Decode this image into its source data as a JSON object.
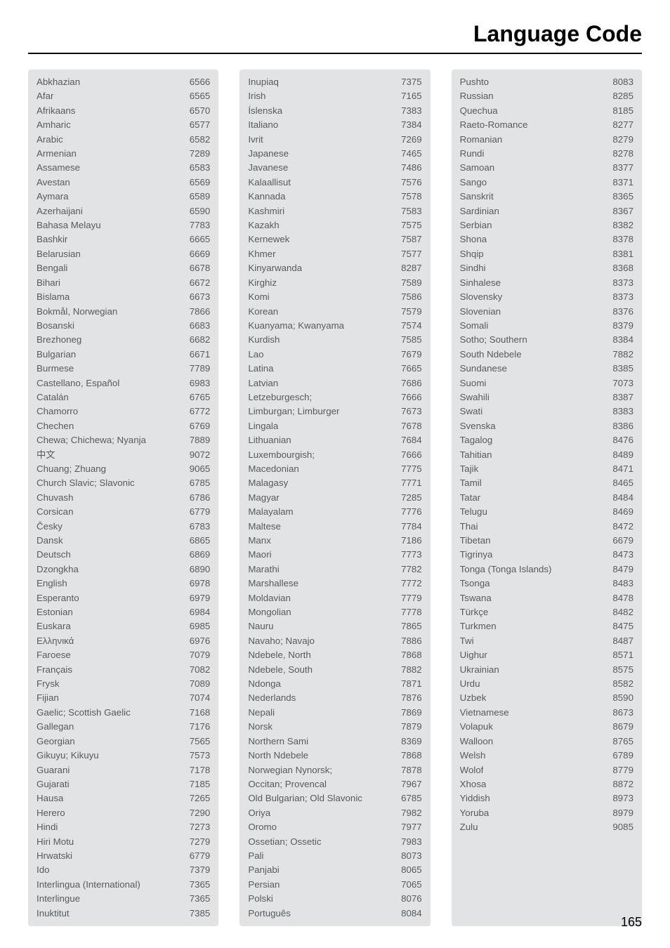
{
  "title": "Language Code",
  "page_number": "165",
  "columns": [
    [
      {
        "lang": "Abkhazian",
        "code": "6566"
      },
      {
        "lang": "Afar",
        "code": "6565"
      },
      {
        "lang": "Afrikaans",
        "code": "6570"
      },
      {
        "lang": "Amharic",
        "code": "6577"
      },
      {
        "lang": "Arabic",
        "code": "6582"
      },
      {
        "lang": "Armenian",
        "code": "7289"
      },
      {
        "lang": "Assamese",
        "code": "6583"
      },
      {
        "lang": "Avestan",
        "code": "6569"
      },
      {
        "lang": "Aymara",
        "code": "6589"
      },
      {
        "lang": "Azerhaijani",
        "code": "6590"
      },
      {
        "lang": "Bahasa Melayu",
        "code": "7783"
      },
      {
        "lang": "Bashkir",
        "code": "6665"
      },
      {
        "lang": "Belarusian",
        "code": "6669"
      },
      {
        "lang": "Bengali",
        "code": "6678"
      },
      {
        "lang": "Bihari",
        "code": "6672"
      },
      {
        "lang": "Bislama",
        "code": "6673"
      },
      {
        "lang": "Bokmål, Norwegian",
        "code": "7866"
      },
      {
        "lang": "Bosanski",
        "code": "6683"
      },
      {
        "lang": "Brezhoneg",
        "code": "6682"
      },
      {
        "lang": "Bulgarian",
        "code": "6671"
      },
      {
        "lang": "Burmese",
        "code": "7789"
      },
      {
        "lang": "Castellano, Español",
        "code": "6983"
      },
      {
        "lang": "Catalán",
        "code": "6765"
      },
      {
        "lang": "Chamorro",
        "code": "6772"
      },
      {
        "lang": "Chechen",
        "code": "6769"
      },
      {
        "lang": "Chewa; Chichewa; Nyanja",
        "code": "7889"
      },
      {
        "lang": "中文",
        "code": "9072"
      },
      {
        "lang": "Chuang; Zhuang",
        "code": "9065"
      },
      {
        "lang": "Church Slavic; Slavonic",
        "code": "6785"
      },
      {
        "lang": "Chuvash",
        "code": "6786"
      },
      {
        "lang": "Corsican",
        "code": "6779"
      },
      {
        "lang": "Česky",
        "code": "6783"
      },
      {
        "lang": "Dansk",
        "code": "6865"
      },
      {
        "lang": "Deutsch",
        "code": "6869"
      },
      {
        "lang": "Dzongkha",
        "code": "6890"
      },
      {
        "lang": "English",
        "code": "6978"
      },
      {
        "lang": "Esperanto",
        "code": "6979"
      },
      {
        "lang": "Estonian",
        "code": "6984"
      },
      {
        "lang": "Euskara",
        "code": "6985"
      },
      {
        "lang": "Ελληνικά",
        "code": "6976"
      },
      {
        "lang": "Faroese",
        "code": "7079"
      },
      {
        "lang": "Français",
        "code": "7082"
      },
      {
        "lang": "Frysk",
        "code": "7089"
      },
      {
        "lang": "Fijian",
        "code": "7074"
      },
      {
        "lang": "Gaelic; Scottish Gaelic",
        "code": "7168"
      },
      {
        "lang": "Gallegan",
        "code": "7176"
      },
      {
        "lang": "Georgian",
        "code": "7565"
      },
      {
        "lang": "Gikuyu; Kikuyu",
        "code": "7573"
      },
      {
        "lang": "Guarani",
        "code": "7178"
      },
      {
        "lang": "Gujarati",
        "code": "7185"
      },
      {
        "lang": "Hausa",
        "code": "7265"
      },
      {
        "lang": "Herero",
        "code": "7290"
      },
      {
        "lang": "Hindi",
        "code": "7273"
      },
      {
        "lang": "Hiri Motu",
        "code": "7279"
      },
      {
        "lang": "Hrwatski",
        "code": "6779"
      },
      {
        "lang": "Ido",
        "code": "7379"
      },
      {
        "lang": "Interlingua (International)",
        "code": "7365"
      },
      {
        "lang": "Interlingue",
        "code": "7365"
      },
      {
        "lang": "Inuktitut",
        "code": "7385"
      }
    ],
    [
      {
        "lang": "Inupiaq",
        "code": "7375"
      },
      {
        "lang": "Irish",
        "code": "7165"
      },
      {
        "lang": "Íslenska",
        "code": "7383"
      },
      {
        "lang": "Italiano",
        "code": "7384"
      },
      {
        "lang": "Ivrit",
        "code": "7269"
      },
      {
        "lang": "Japanese",
        "code": "7465"
      },
      {
        "lang": "Javanese",
        "code": "7486"
      },
      {
        "lang": "Kalaallisut",
        "code": "7576"
      },
      {
        "lang": "Kannada",
        "code": "7578"
      },
      {
        "lang": "Kashmiri",
        "code": "7583"
      },
      {
        "lang": "Kazakh",
        "code": "7575"
      },
      {
        "lang": "Kernewek",
        "code": "7587"
      },
      {
        "lang": "Khmer",
        "code": "7577"
      },
      {
        "lang": "Kinyarwanda",
        "code": "8287"
      },
      {
        "lang": "Kirghiz",
        "code": "7589"
      },
      {
        "lang": "Komi",
        "code": "7586"
      },
      {
        "lang": "Korean",
        "code": "7579"
      },
      {
        "lang": "Kuanyama; Kwanyama",
        "code": "7574"
      },
      {
        "lang": "Kurdish",
        "code": "7585"
      },
      {
        "lang": "Lao",
        "code": "7679"
      },
      {
        "lang": "Latina",
        "code": "7665"
      },
      {
        "lang": "Latvian",
        "code": "7686"
      },
      {
        "lang": "Letzeburgesch;",
        "code": "7666"
      },
      {
        "lang": "Limburgan; Limburger",
        "code": "7673"
      },
      {
        "lang": "Lingala",
        "code": "7678"
      },
      {
        "lang": "Lithuanian",
        "code": "7684"
      },
      {
        "lang": "Luxembourgish;",
        "code": "7666"
      },
      {
        "lang": "Macedonian",
        "code": "7775"
      },
      {
        "lang": "Malagasy",
        "code": "7771"
      },
      {
        "lang": "Magyar",
        "code": "7285"
      },
      {
        "lang": "Malayalam",
        "code": "7776"
      },
      {
        "lang": "Maltese",
        "code": "7784"
      },
      {
        "lang": "Manx",
        "code": "7186"
      },
      {
        "lang": "Maori",
        "code": "7773"
      },
      {
        "lang": "Marathi",
        "code": "7782"
      },
      {
        "lang": "Marshallese",
        "code": "7772"
      },
      {
        "lang": "Moldavian",
        "code": "7779"
      },
      {
        "lang": "Mongolian",
        "code": "7778"
      },
      {
        "lang": "Nauru",
        "code": "7865"
      },
      {
        "lang": "Navaho; Navajo",
        "code": "7886"
      },
      {
        "lang": "Ndebele, North",
        "code": "7868"
      },
      {
        "lang": "Ndebele, South",
        "code": "7882"
      },
      {
        "lang": "Ndonga",
        "code": "7871"
      },
      {
        "lang": "Nederlands",
        "code": "7876"
      },
      {
        "lang": "Nepali",
        "code": "7869"
      },
      {
        "lang": "Norsk",
        "code": "7879"
      },
      {
        "lang": "Northern Sami",
        "code": "8369"
      },
      {
        "lang": "North Ndebele",
        "code": "7868"
      },
      {
        "lang": "Norwegian Nynorsk;",
        "code": "7878"
      },
      {
        "lang": "Occitan; Provencal",
        "code": "7967"
      },
      {
        "lang": "Old Bulgarian; Old Slavonic",
        "code": "6785"
      },
      {
        "lang": "Oriya",
        "code": "7982"
      },
      {
        "lang": "Oromo",
        "code": "7977"
      },
      {
        "lang": "Ossetian; Ossetic",
        "code": "7983"
      },
      {
        "lang": "Pali",
        "code": "8073"
      },
      {
        "lang": "Panjabi",
        "code": "8065"
      },
      {
        "lang": "Persian",
        "code": "7065"
      },
      {
        "lang": "Polski",
        "code": "8076"
      },
      {
        "lang": "Português",
        "code": "8084"
      }
    ],
    [
      {
        "lang": "Pushto",
        "code": "8083"
      },
      {
        "lang": "Russian",
        "code": "8285"
      },
      {
        "lang": "Quechua",
        "code": "8185"
      },
      {
        "lang": "Raeto-Romance",
        "code": "8277"
      },
      {
        "lang": "Romanian",
        "code": "8279"
      },
      {
        "lang": "Rundi",
        "code": "8278"
      },
      {
        "lang": "Samoan",
        "code": "8377"
      },
      {
        "lang": "Sango",
        "code": "8371"
      },
      {
        "lang": "Sanskrit",
        "code": "8365"
      },
      {
        "lang": "Sardinian",
        "code": "8367"
      },
      {
        "lang": "Serbian",
        "code": "8382"
      },
      {
        "lang": "Shona",
        "code": "8378"
      },
      {
        "lang": "Shqip",
        "code": "8381"
      },
      {
        "lang": "Sindhi",
        "code": "8368"
      },
      {
        "lang": "Sinhalese",
        "code": "8373"
      },
      {
        "lang": "Slovensky",
        "code": "8373"
      },
      {
        "lang": "Slovenian",
        "code": "8376"
      },
      {
        "lang": "Somali",
        "code": "8379"
      },
      {
        "lang": "Sotho; Southern",
        "code": "8384"
      },
      {
        "lang": "South Ndebele",
        "code": "7882"
      },
      {
        "lang": "Sundanese",
        "code": "8385"
      },
      {
        "lang": "Suomi",
        "code": "7073"
      },
      {
        "lang": "Swahili",
        "code": "8387"
      },
      {
        "lang": "Swati",
        "code": "8383"
      },
      {
        "lang": "Svenska",
        "code": "8386"
      },
      {
        "lang": "Tagalog",
        "code": "8476"
      },
      {
        "lang": "Tahitian",
        "code": "8489"
      },
      {
        "lang": "Tajik",
        "code": "8471"
      },
      {
        "lang": "Tamil",
        "code": "8465"
      },
      {
        "lang": "Tatar",
        "code": "8484"
      },
      {
        "lang": "Telugu",
        "code": "8469"
      },
      {
        "lang": "Thai",
        "code": "8472"
      },
      {
        "lang": "Tibetan",
        "code": "6679"
      },
      {
        "lang": "Tigrinya",
        "code": "8473"
      },
      {
        "lang": "Tonga (Tonga Islands)",
        "code": "8479"
      },
      {
        "lang": "Tsonga",
        "code": "8483"
      },
      {
        "lang": "Tswana",
        "code": "8478"
      },
      {
        "lang": "Türkçe",
        "code": "8482"
      },
      {
        "lang": "Turkmen",
        "code": "8475"
      },
      {
        "lang": "Twi",
        "code": "8487"
      },
      {
        "lang": "Uighur",
        "code": "8571"
      },
      {
        "lang": "Ukrainian",
        "code": "8575"
      },
      {
        "lang": "Urdu",
        "code": "8582"
      },
      {
        "lang": "Uzbek",
        "code": "8590"
      },
      {
        "lang": "Vietnamese",
        "code": "8673"
      },
      {
        "lang": "Volapuk",
        "code": "8679"
      },
      {
        "lang": "Walloon",
        "code": "8765"
      },
      {
        "lang": "Welsh",
        "code": "6789"
      },
      {
        "lang": "Wolof",
        "code": "8779"
      },
      {
        "lang": "Xhosa",
        "code": "8872"
      },
      {
        "lang": "Yiddish",
        "code": "8973"
      },
      {
        "lang": "Yoruba",
        "code": "8979"
      },
      {
        "lang": "Zulu",
        "code": "9085"
      }
    ]
  ]
}
